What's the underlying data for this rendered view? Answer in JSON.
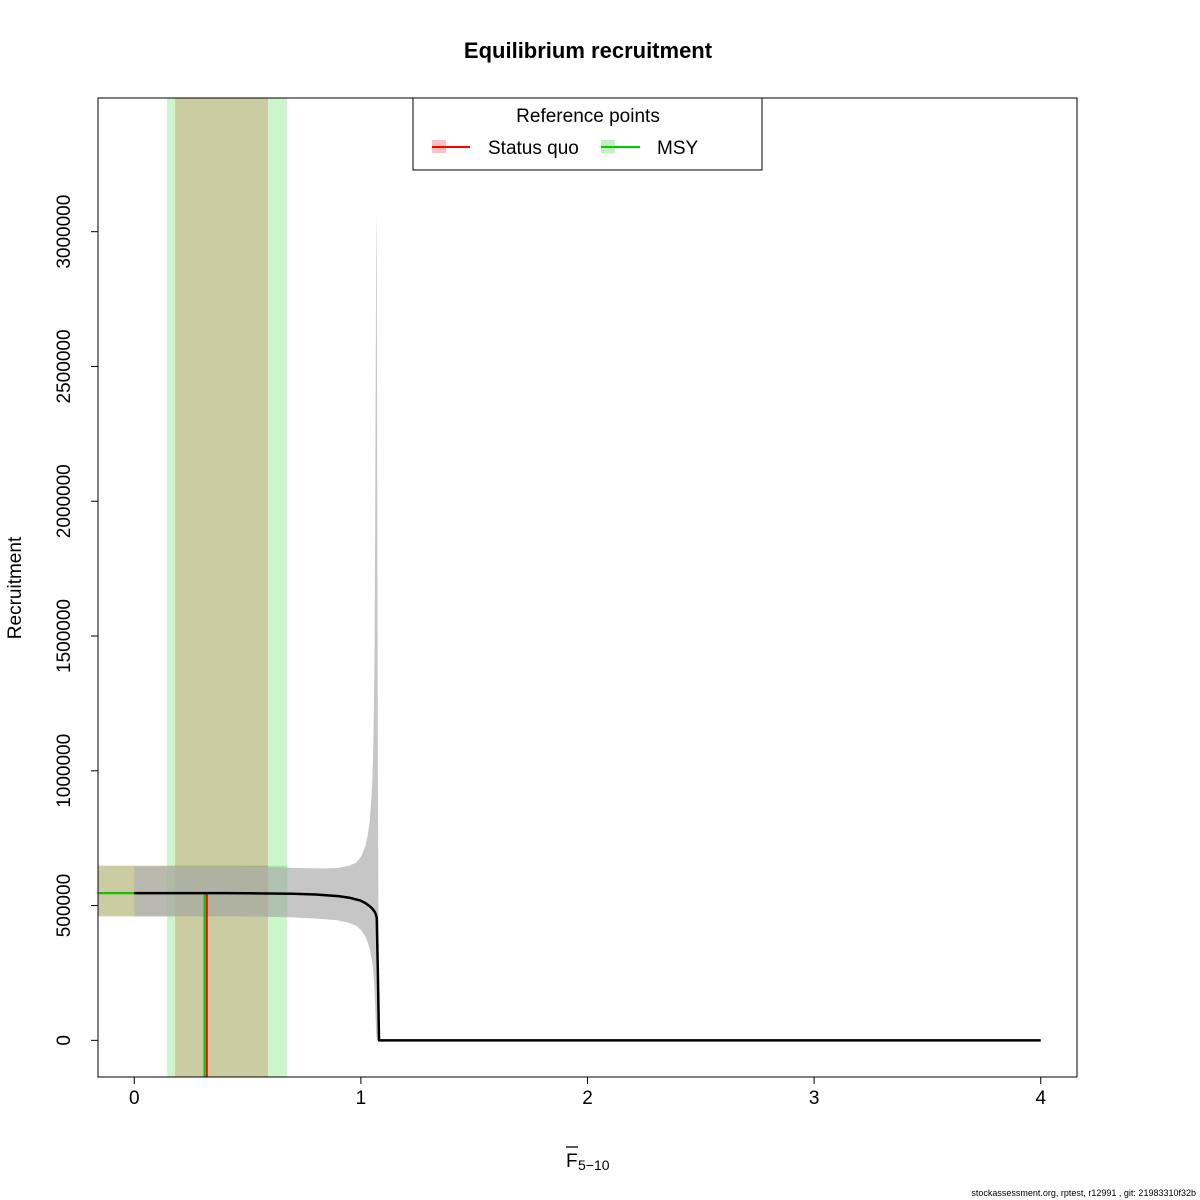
{
  "chart_data": {
    "type": "line",
    "title": "Equilibrium recruitment",
    "xlabel": {
      "main": "F",
      "overbar": true,
      "subscript": "5−10"
    },
    "ylabel": "Recruitment",
    "xlim": [
      -0.16,
      4.16
    ],
    "ylim": [
      -136000,
      3496000
    ],
    "x_ticks": [
      0,
      1,
      2,
      3,
      4
    ],
    "x_tick_labels": [
      "0",
      "1",
      "2",
      "3",
      "4"
    ],
    "y_ticks": [
      0,
      500000,
      1000000,
      1500000,
      2000000,
      2500000,
      3000000
    ],
    "y_tick_labels": [
      "0",
      "500000",
      "1000000",
      "1500000",
      "2000000",
      "2500000",
      "3000000"
    ],
    "grid": false,
    "legend": {
      "title": "Reference points",
      "position": "top-center",
      "entries": [
        {
          "label": "Status quo",
          "color": "#ff0000",
          "fill": "#ff000040"
        },
        {
          "label": "MSY",
          "color": "#00cd00",
          "fill": "#00cd0040"
        }
      ]
    },
    "series": [
      {
        "role": "estimate",
        "color": "#000000",
        "x": [
          0,
          0.1,
          0.2,
          0.3,
          0.4,
          0.5,
          0.6,
          0.7,
          0.8,
          0.9,
          0.95,
          1.0,
          1.02,
          1.04,
          1.05,
          1.06,
          1.065,
          1.07,
          1.075,
          1.08,
          1.09,
          1.1,
          1.5,
          2.0,
          2.5,
          3.0,
          3.5,
          4.0
        ],
        "y": [
          546000,
          546000,
          546000,
          546000,
          546000,
          545500,
          545000,
          544000,
          541000,
          535000,
          529000,
          518000,
          509000,
          497000,
          489000,
          478000,
          470000,
          455000,
          250000,
          0,
          0,
          0,
          0,
          0,
          0,
          0,
          0,
          0
        ]
      },
      {
        "role": "confidence-band",
        "fill": "#b3b3b3",
        "x": [
          0,
          0.2,
          0.4,
          0.6,
          0.7,
          0.8,
          0.85,
          0.9,
          0.95,
          0.98,
          1.0,
          1.02,
          1.03,
          1.04,
          1.05,
          1.055,
          1.06,
          1.063,
          1.066,
          1.068,
          1.07,
          1.072,
          1.075,
          1.08
        ],
        "upper": [
          645000,
          645000,
          645000,
          643000,
          640000,
          638000,
          638000,
          640000,
          648000,
          660000,
          680000,
          720000,
          760000,
          820000,
          950000,
          1100000,
          1400000,
          1900000,
          2600000,
          3090000,
          2900000,
          2100000,
          1000000,
          0
        ],
        "lower": [
          460000,
          460000,
          460000,
          458000,
          456000,
          452000,
          449000,
          445000,
          435000,
          425000,
          410000,
          385000,
          365000,
          335000,
          290000,
          250000,
          190000,
          130000,
          60000,
          20000,
          5000,
          0,
          0,
          0
        ]
      }
    ],
    "reference_points": [
      {
        "name": "Status quo",
        "color": "#ff0000",
        "F": 0.32,
        "F_ci": [
          0.18,
          0.59
        ],
        "R": 546000,
        "R_ci": [
          460000,
          648000
        ]
      },
      {
        "name": "MSY",
        "color": "#00cd00",
        "F": 0.31,
        "F_ci": [
          0.145,
          0.675
        ],
        "R": 546000,
        "R_ci": [
          460000,
          648000
        ]
      }
    ]
  },
  "footer": "stockassessment.org, rptest, r12991 , git: 21983310f32b"
}
